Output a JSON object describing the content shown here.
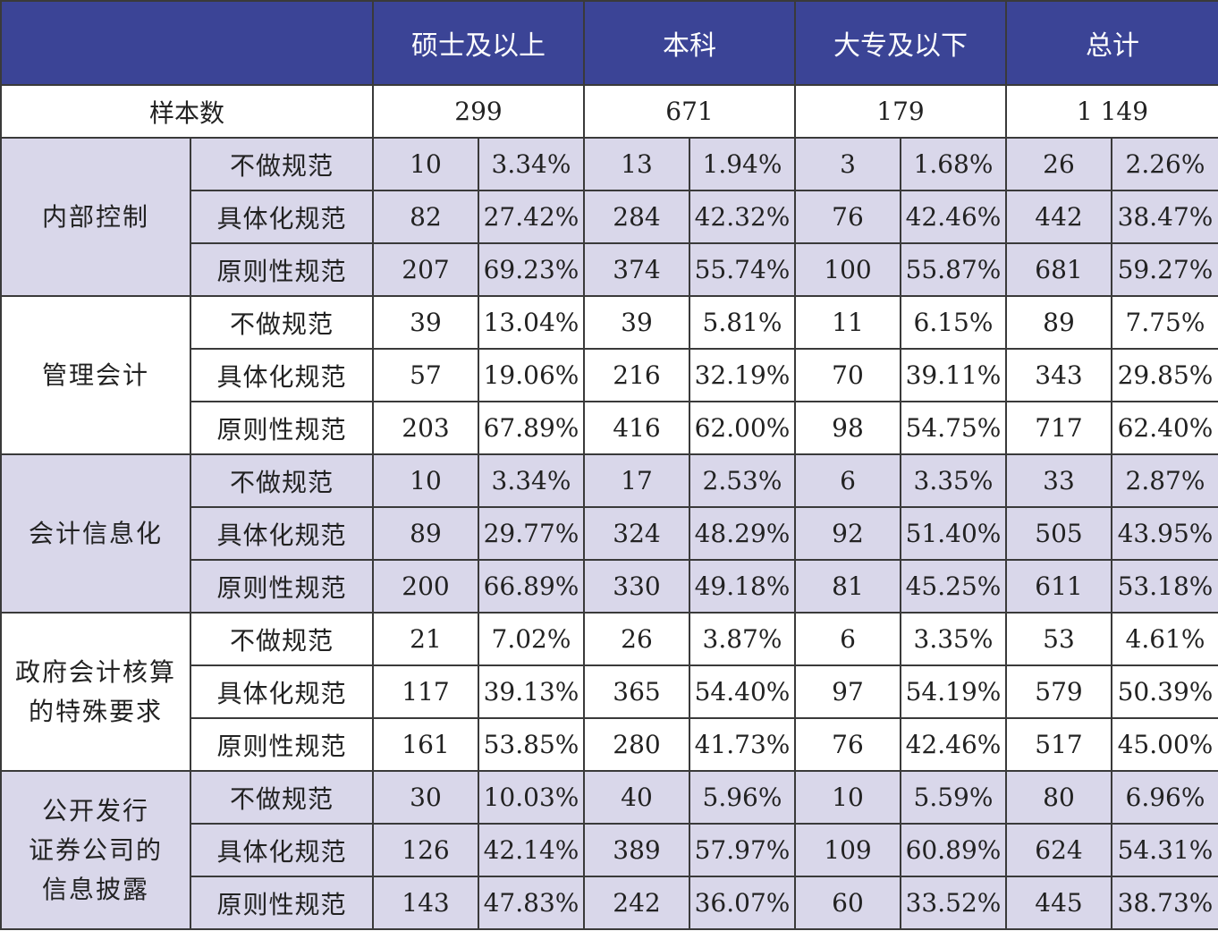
{
  "header": {
    "corner": "",
    "columns": [
      "硕士及以上",
      "本科",
      "大专及以下",
      "总计"
    ]
  },
  "sample": {
    "label": "样本数",
    "values": [
      "299",
      "671",
      "179",
      "1 149"
    ]
  },
  "sections": [
    {
      "category_lines": [
        "内部控制"
      ],
      "shade": true,
      "rows": [
        {
          "label": "不做规范",
          "cells": [
            "10",
            "3.34%",
            "13",
            "1.94%",
            "3",
            "1.68%",
            "26",
            "2.26%"
          ]
        },
        {
          "label": "具体化规范",
          "cells": [
            "82",
            "27.42%",
            "284",
            "42.32%",
            "76",
            "42.46%",
            "442",
            "38.47%"
          ]
        },
        {
          "label": "原则性规范",
          "cells": [
            "207",
            "69.23%",
            "374",
            "55.74%",
            "100",
            "55.87%",
            "681",
            "59.27%"
          ]
        }
      ]
    },
    {
      "category_lines": [
        "管理会计"
      ],
      "shade": false,
      "rows": [
        {
          "label": "不做规范",
          "cells": [
            "39",
            "13.04%",
            "39",
            "5.81%",
            "11",
            "6.15%",
            "89",
            "7.75%"
          ]
        },
        {
          "label": "具体化规范",
          "cells": [
            "57",
            "19.06%",
            "216",
            "32.19%",
            "70",
            "39.11%",
            "343",
            "29.85%"
          ]
        },
        {
          "label": "原则性规范",
          "cells": [
            "203",
            "67.89%",
            "416",
            "62.00%",
            "98",
            "54.75%",
            "717",
            "62.40%"
          ]
        }
      ]
    },
    {
      "category_lines": [
        "会计信息化"
      ],
      "shade": true,
      "rows": [
        {
          "label": "不做规范",
          "cells": [
            "10",
            "3.34%",
            "17",
            "2.53%",
            "6",
            "3.35%",
            "33",
            "2.87%"
          ]
        },
        {
          "label": "具体化规范",
          "cells": [
            "89",
            "29.77%",
            "324",
            "48.29%",
            "92",
            "51.40%",
            "505",
            "43.95%"
          ]
        },
        {
          "label": "原则性规范",
          "cells": [
            "200",
            "66.89%",
            "330",
            "49.18%",
            "81",
            "45.25%",
            "611",
            "53.18%"
          ]
        }
      ]
    },
    {
      "category_lines": [
        "政府会计核算",
        "的特殊要求"
      ],
      "shade": false,
      "rows": [
        {
          "label": "不做规范",
          "cells": [
            "21",
            "7.02%",
            "26",
            "3.87%",
            "6",
            "3.35%",
            "53",
            "4.61%"
          ]
        },
        {
          "label": "具体化规范",
          "cells": [
            "117",
            "39.13%",
            "365",
            "54.40%",
            "97",
            "54.19%",
            "579",
            "50.39%"
          ]
        },
        {
          "label": "原则性规范",
          "cells": [
            "161",
            "53.85%",
            "280",
            "41.73%",
            "76",
            "42.46%",
            "517",
            "45.00%"
          ]
        }
      ]
    },
    {
      "category_lines": [
        "公开发行",
        "证券公司的",
        "信息披露"
      ],
      "shade": true,
      "rows": [
        {
          "label": "不做规范",
          "cells": [
            "30",
            "10.03%",
            "40",
            "5.96%",
            "10",
            "5.59%",
            "80",
            "6.96%"
          ]
        },
        {
          "label": "具体化规范",
          "cells": [
            "126",
            "42.14%",
            "389",
            "57.97%",
            "109",
            "60.89%",
            "624",
            "54.31%"
          ]
        },
        {
          "label": "原则性规范",
          "cells": [
            "143",
            "47.83%",
            "242",
            "36.07%",
            "60",
            "33.52%",
            "445",
            "38.73%"
          ]
        }
      ]
    }
  ]
}
